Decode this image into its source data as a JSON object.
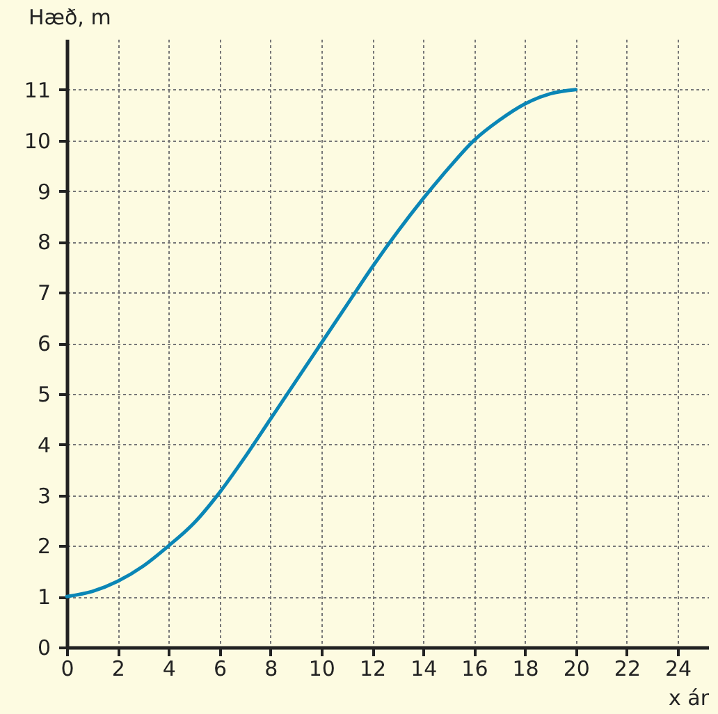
{
  "chart_data": {
    "type": "line",
    "xlabel": "x ár",
    "ylabel": "Hæð, m",
    "x": [
      0,
      1,
      2,
      3,
      4,
      5,
      6,
      7,
      8,
      9,
      10,
      11,
      12,
      13,
      14,
      15,
      16,
      17,
      18,
      19,
      20
    ],
    "series": [
      {
        "color": "#0a86b6",
        "values": [
          1,
          1.1,
          1.3,
          1.6,
          2,
          2.45,
          3.05,
          3.75,
          4.5,
          5.25,
          6,
          6.75,
          7.5,
          8.2,
          8.85,
          9.45,
          10,
          10.4,
          10.72,
          10.92,
          11
        ]
      }
    ],
    "xlim": [
      0,
      25.2
    ],
    "ylim": [
      0,
      12
    ],
    "xticks": [
      0,
      2,
      4,
      6,
      8,
      10,
      12,
      14,
      16,
      18,
      20,
      22,
      24
    ],
    "yticks": [
      0,
      1,
      2,
      3,
      4,
      5,
      6,
      7,
      8,
      9,
      10,
      11
    ],
    "grid": true,
    "legend": false,
    "marker": "none",
    "line_style": "solid"
  }
}
